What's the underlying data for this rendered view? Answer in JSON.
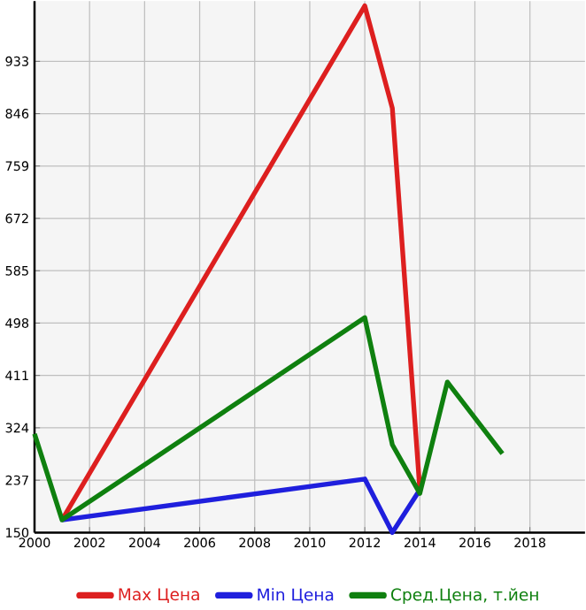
{
  "chart_data": {
    "type": "line",
    "xlim": [
      2000,
      2020
    ],
    "xticks": [
      2000,
      2002,
      2004,
      2006,
      2008,
      2010,
      2012,
      2014,
      2016,
      2018
    ],
    "ylim": [
      150,
      1033
    ],
    "yticks": [
      150,
      237,
      324,
      411,
      498,
      585,
      672,
      759,
      846,
      933
    ],
    "grid": true,
    "legend": "bottom",
    "marker": "none",
    "line_style": "solid",
    "series": [
      {
        "name": "Max Цена",
        "color": "#dd1f1f",
        "x": [
          2001,
          2012,
          2013,
          2014
        ],
        "values": [
          171,
          1025,
          855,
          221
        ]
      },
      {
        "name": "Min Цена",
        "color": "#1f1fdd",
        "x": [
          2001,
          2012,
          2013,
          2014
        ],
        "values": [
          171,
          239,
          150,
          221
        ]
      },
      {
        "name": "Сред.Цена, т.йен",
        "color": "#0f800f",
        "x": [
          2000,
          2001,
          2012,
          2013,
          2014,
          2015,
          2017
        ],
        "values": [
          314,
          171,
          507,
          296,
          215,
          400,
          281
        ]
      }
    ]
  }
}
